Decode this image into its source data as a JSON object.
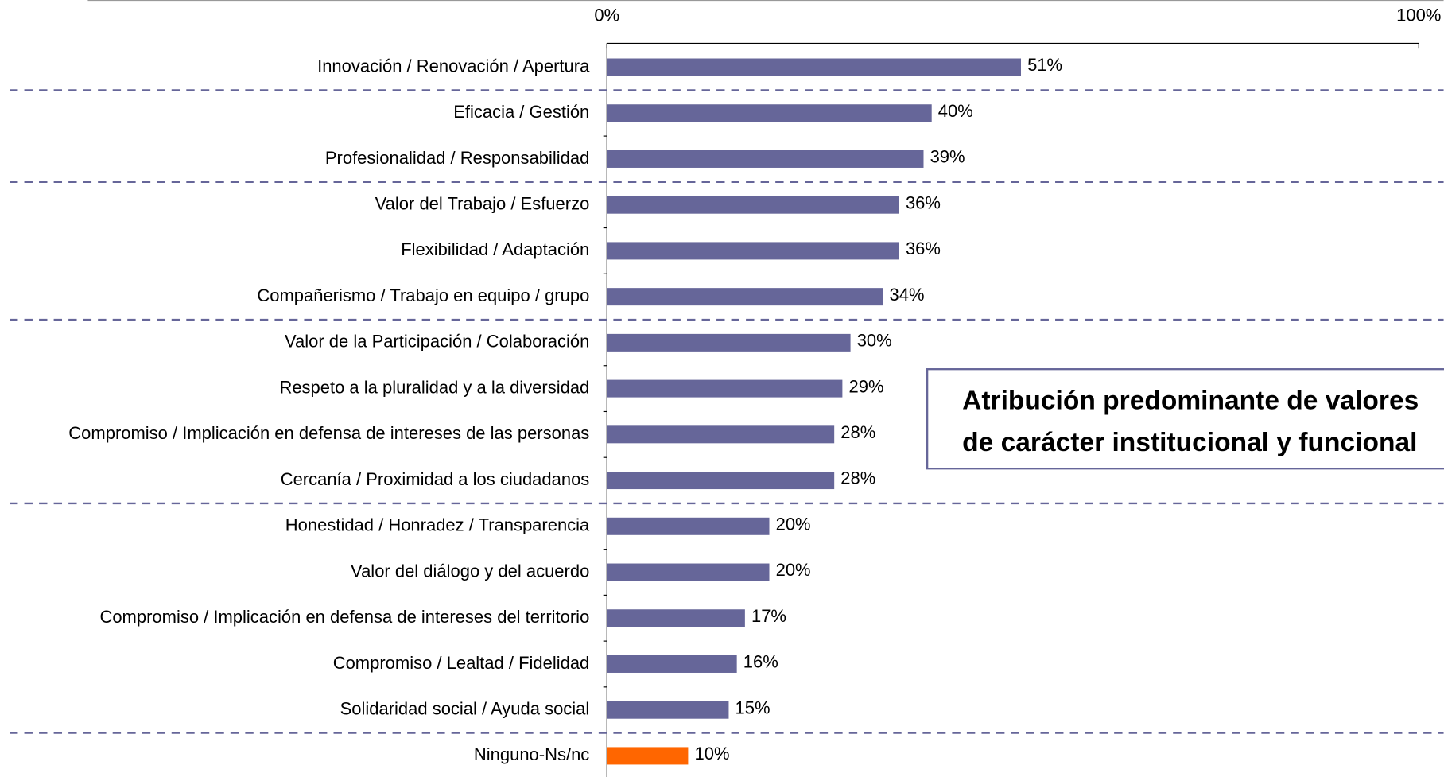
{
  "chart_data": {
    "type": "bar",
    "orientation": "horizontal",
    "categories": [
      "Innovación / Renovación / Apertura",
      "Eficacia / Gestión",
      "Profesionalidad / Responsabilidad",
      "Valor del Trabajo / Esfuerzo",
      "Flexibilidad / Adaptación",
      "Compañerismo / Trabajo en equipo / grupo",
      "Valor de la Participación / Colaboración",
      "Respeto a la pluralidad y a la diversidad",
      "Compromiso / Implicación en defensa de intereses de las personas",
      "Cercanía / Proximidad a los ciudadanos",
      "Honestidad / Honradez / Transparencia",
      "Valor del diálogo y del acuerdo",
      "Compromiso / Implicación en defensa de intereses del territorio",
      "Compromiso / Lealtad / Fidelidad",
      "Solidaridad social / Ayuda social",
      "Ninguno-Ns/nc"
    ],
    "values": [
      51,
      40,
      39,
      36,
      36,
      34,
      30,
      29,
      28,
      28,
      20,
      20,
      17,
      16,
      15,
      10
    ],
    "value_labels": [
      "51%",
      "40%",
      "39%",
      "36%",
      "36%",
      "34%",
      "30%",
      "29%",
      "28%",
      "28%",
      "20%",
      "20%",
      "17%",
      "16%",
      "15%",
      "10%"
    ],
    "colors": [
      "#666699",
      "#666699",
      "#666699",
      "#666699",
      "#666699",
      "#666699",
      "#666699",
      "#666699",
      "#666699",
      "#666699",
      "#666699",
      "#666699",
      "#666699",
      "#666699",
      "#666699",
      "#ff6600"
    ],
    "xlim": [
      0,
      100
    ],
    "xticks": [
      {
        "value": 0,
        "label": "0%"
      },
      {
        "value": 100,
        "label": "100%"
      }
    ],
    "annotation": [
      "Atribución predominante de valores",
      "de carácter institucional y funcional"
    ]
  }
}
